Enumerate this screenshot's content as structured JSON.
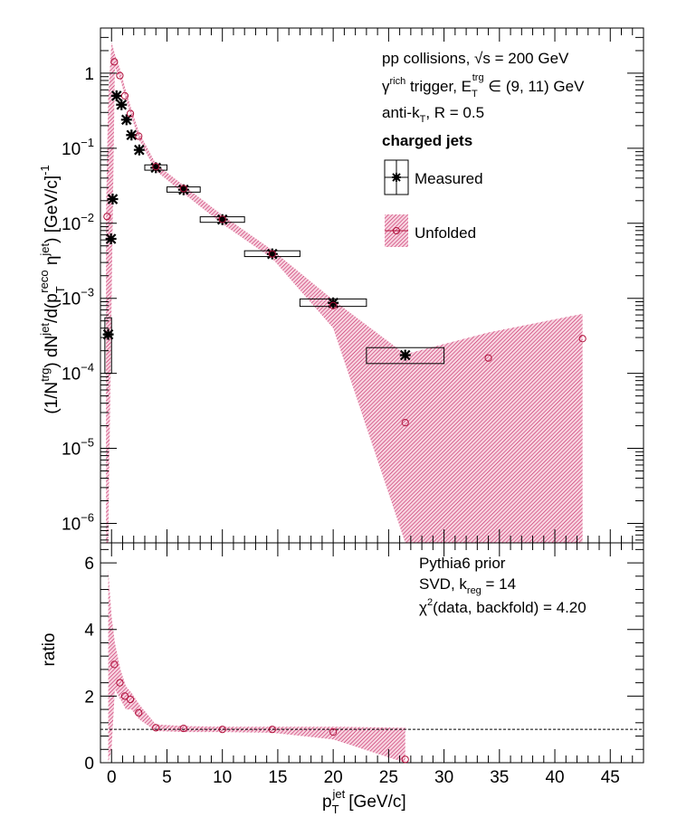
{
  "colors": {
    "measured": "#000000",
    "unfolded": "#b0103a",
    "band": "#c2185b",
    "dashed": "#000000"
  },
  "figure": {
    "x_axis_label": "p",
    "x_axis_label_sub": "T",
    "x_axis_label_sup": "jet",
    "x_axis_label_unit": "[GeV/c]"
  },
  "chart_data": [
    {
      "type": "scatter",
      "panel": "top",
      "y_scale": "log",
      "xlim": [
        -1,
        48
      ],
      "ylim": [
        5.5e-07,
        4
      ],
      "ylabel": "(1/N^{trg}) dN^{jet}/d(p_{T}^{reco} η^{jet}) [GeV/c]^{-1}",
      "x_ticks": [
        0,
        5,
        10,
        15,
        20,
        25,
        30,
        35,
        40,
        45
      ],
      "y_ticks": [
        {
          "value": 1,
          "label": "1"
        },
        {
          "value": 0.1,
          "label": "10",
          "exp": "−1"
        },
        {
          "value": 0.01,
          "label": "10",
          "exp": "−2"
        },
        {
          "value": 0.001,
          "label": "10",
          "exp": "−3"
        },
        {
          "value": 0.0001,
          "label": "10",
          "exp": "−4"
        },
        {
          "value": 1e-05,
          "label": "10",
          "exp": "−5"
        },
        {
          "value": 1e-06,
          "label": "10",
          "exp": "−6"
        }
      ],
      "annotations": {
        "line1": "pp collisions, √s = 200 GeV",
        "line2_a": "γ",
        "line2_sup1": "rich",
        "line2_b": " trigger, E",
        "line2_sub": "T",
        "line2_sup2": "trg",
        "line2_c": " ∈ (9, 11) GeV",
        "line3_a": "anti-k",
        "line3_sub": "T",
        "line3_b": ", R = 0.5",
        "line4": "charged jets"
      },
      "legend": {
        "measured": "Measured",
        "unfolded": "Unfolded",
        "position": "top-right"
      },
      "series": [
        {
          "name": "Measured",
          "points": [
            {
              "x": -0.3,
              "y": 0.00033,
              "box_x": [
                -0.6,
                0.0
              ],
              "box_y": [
                0.0001,
                0.00055
              ]
            },
            {
              "x": -0.05,
              "y": 0.0062
            },
            {
              "x": 0.1,
              "y": 0.021
            },
            {
              "x": 0.45,
              "y": 0.5
            },
            {
              "x": 0.9,
              "y": 0.38
            },
            {
              "x": 1.35,
              "y": 0.24
            },
            {
              "x": 1.8,
              "y": 0.15
            },
            {
              "x": 2.5,
              "y": 0.095
            },
            {
              "x": 4.0,
              "y": 0.055,
              "box_x": [
                3.0,
                5.0
              ],
              "box_y": [
                0.051,
                0.06
              ]
            },
            {
              "x": 6.5,
              "y": 0.028,
              "box_x": [
                5.0,
                8.0
              ],
              "box_y": [
                0.026,
                0.0305
              ]
            },
            {
              "x": 10.0,
              "y": 0.0112,
              "box_x": [
                8.0,
                12.0
              ],
              "box_y": [
                0.0103,
                0.0122
              ]
            },
            {
              "x": 14.5,
              "y": 0.0039,
              "box_x": [
                12.0,
                17.0
              ],
              "box_y": [
                0.0036,
                0.0043
              ]
            },
            {
              "x": 20.0,
              "y": 0.00087,
              "box_x": [
                17.0,
                23.0
              ],
              "box_y": [
                0.00078,
                0.00098
              ]
            },
            {
              "x": 26.5,
              "y": 0.000175,
              "box_x": [
                23.0,
                30.0
              ],
              "box_y": [
                0.000135,
                0.00022
              ]
            }
          ]
        },
        {
          "name": "Unfolded",
          "points": [
            {
              "x": -0.4,
              "y": 0.0123
            },
            {
              "x": 0.25,
              "y": 1.42
            },
            {
              "x": 0.75,
              "y": 0.93
            },
            {
              "x": 1.2,
              "y": 0.5
            },
            {
              "x": 1.7,
              "y": 0.29
            },
            {
              "x": 2.45,
              "y": 0.145
            },
            {
              "x": 4.0,
              "y": 0.057
            },
            {
              "x": 6.5,
              "y": 0.029
            },
            {
              "x": 10.0,
              "y": 0.0113
            },
            {
              "x": 14.5,
              "y": 0.0039
            },
            {
              "x": 20.0,
              "y": 0.0008
            },
            {
              "x": 26.5,
              "y": 2.2e-05
            },
            {
              "x": 34.0,
              "y": 0.00016
            },
            {
              "x": 42.5,
              "y": 0.00029
            }
          ],
          "band_upper": [
            [
              -0.5,
              0.0125
            ],
            [
              -0.3,
              0.5
            ],
            [
              0.0,
              2.6
            ],
            [
              0.3,
              1.8
            ],
            [
              0.8,
              1.1
            ],
            [
              1.3,
              0.58
            ],
            [
              1.8,
              0.33
            ],
            [
              2.5,
              0.16
            ],
            [
              4,
              0.062
            ],
            [
              6.5,
              0.032
            ],
            [
              10,
              0.0128
            ],
            [
              14.5,
              0.0044
            ],
            [
              20,
              0.00095
            ],
            [
              26.5,
              0.00018
            ],
            [
              34,
              0.00035
            ],
            [
              42.5,
              0.00062
            ]
          ],
          "band_lower": [
            [
              42.5,
              5.5e-07
            ],
            [
              27,
              5.5e-07
            ],
            [
              26.5,
              5.5e-07
            ],
            [
              20,
              0.0004
            ],
            [
              14.5,
              0.0034
            ],
            [
              10,
              0.0098
            ],
            [
              6.5,
              0.025
            ],
            [
              4,
              0.05
            ],
            [
              2.5,
              0.128
            ],
            [
              1.8,
              0.26
            ],
            [
              1.3,
              0.44
            ],
            [
              0.8,
              0.82
            ],
            [
              0.3,
              1.2
            ],
            [
              0.0,
              0.0008
            ],
            [
              -0.3,
              5.5e-07
            ],
            [
              -0.5,
              5.5e-07
            ]
          ]
        }
      ]
    },
    {
      "type": "scatter",
      "panel": "bottom",
      "xlim": [
        -1,
        48
      ],
      "ylim": [
        0,
        6.6
      ],
      "xlabel": "p_T^jet [GeV/c]",
      "ylabel": "ratio",
      "x_ticks": [
        0,
        5,
        10,
        15,
        20,
        25,
        30,
        35,
        40,
        45
      ],
      "y_ticks": [
        0,
        2,
        4,
        6
      ],
      "reference_line": 1,
      "annotations": {
        "line1": "Pythia6 prior",
        "line2_a": "SVD, k",
        "line2_sub": "reg",
        "line2_b": " = 14",
        "line3_a": "χ",
        "line3_sup": "2",
        "line3_b": "(data, backfold) = 4.20"
      },
      "series": [
        {
          "name": "Unfolded",
          "points": [
            {
              "x": 0.25,
              "y": 2.95
            },
            {
              "x": 0.75,
              "y": 2.4
            },
            {
              "x": 1.2,
              "y": 2.0
            },
            {
              "x": 1.7,
              "y": 1.9
            },
            {
              "x": 2.45,
              "y": 1.5
            },
            {
              "x": 4.0,
              "y": 1.05
            },
            {
              "x": 6.5,
              "y": 1.03
            },
            {
              "x": 10.0,
              "y": 1.0
            },
            {
              "x": 14.5,
              "y": 1.0
            },
            {
              "x": 20.0,
              "y": 0.92
            },
            {
              "x": 26.5,
              "y": 0.1
            }
          ],
          "band_upper": [
            [
              -0.3,
              5.8
            ],
            [
              0.0,
              4.4
            ],
            [
              0.3,
              3.6
            ],
            [
              0.8,
              2.8
            ],
            [
              1.3,
              2.3
            ],
            [
              1.8,
              2.1
            ],
            [
              2.5,
              1.75
            ],
            [
              4,
              1.15
            ],
            [
              6.5,
              1.1
            ],
            [
              10,
              1.08
            ],
            [
              14.5,
              1.08
            ],
            [
              20,
              1.08
            ],
            [
              26.5,
              1.05
            ]
          ],
          "band_lower": [
            [
              26.5,
              0.0
            ],
            [
              20,
              0.7
            ],
            [
              14.5,
              0.9
            ],
            [
              10,
              0.92
            ],
            [
              6.5,
              0.92
            ],
            [
              4,
              0.95
            ],
            [
              2.5,
              1.3
            ],
            [
              1.8,
              1.6
            ],
            [
              1.3,
              1.6
            ],
            [
              0.8,
              1.9
            ],
            [
              0.3,
              2.2
            ],
            [
              0.0,
              0.4
            ],
            [
              -0.3,
              0.0
            ]
          ]
        }
      ]
    }
  ]
}
